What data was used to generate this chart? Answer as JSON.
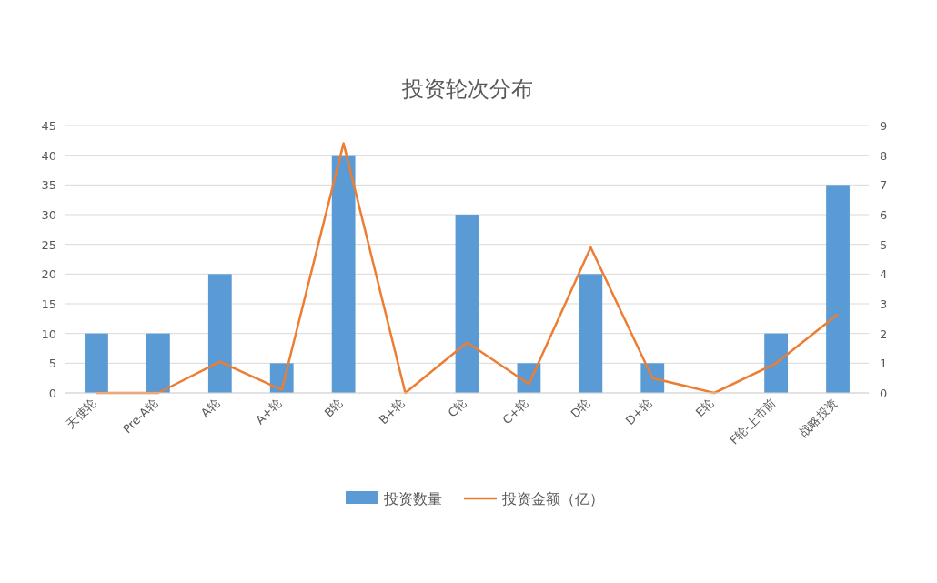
{
  "chart_data": {
    "type": "bar",
    "title": "投资轮次分布",
    "categories": [
      "天使轮",
      "Pre-A轮",
      "A轮",
      "A+轮",
      "B轮",
      "B+轮",
      "C轮",
      "C+轮",
      "D轮",
      "D+轮",
      "E轮",
      "F轮-上市前",
      "战略投资"
    ],
    "series": [
      {
        "name": "投资数量",
        "color": "#5b9bd5",
        "values": [
          10,
          10,
          20,
          5,
          40,
          0,
          30,
          5,
          20,
          5,
          0,
          10,
          35
        ]
      },
      {
        "name": "投资金额（亿）",
        "type": "line",
        "axis": "y2",
        "color": "#ed7d31",
        "values": [
          0,
          0,
          1.05,
          0.1,
          8.4,
          0,
          1.7,
          0.3,
          4.9,
          0.5,
          0,
          1.0,
          2.65
        ]
      }
    ],
    "ylim": [
      0,
      45
    ],
    "yticks": [
      0,
      5,
      10,
      15,
      20,
      25,
      30,
      35,
      40,
      45
    ],
    "y2lim": [
      0,
      9
    ],
    "y2ticks": [
      0,
      1,
      2,
      3,
      4,
      5,
      6,
      7,
      8,
      9
    ],
    "grid": "y",
    "legend": "bottom",
    "marker": "none"
  }
}
